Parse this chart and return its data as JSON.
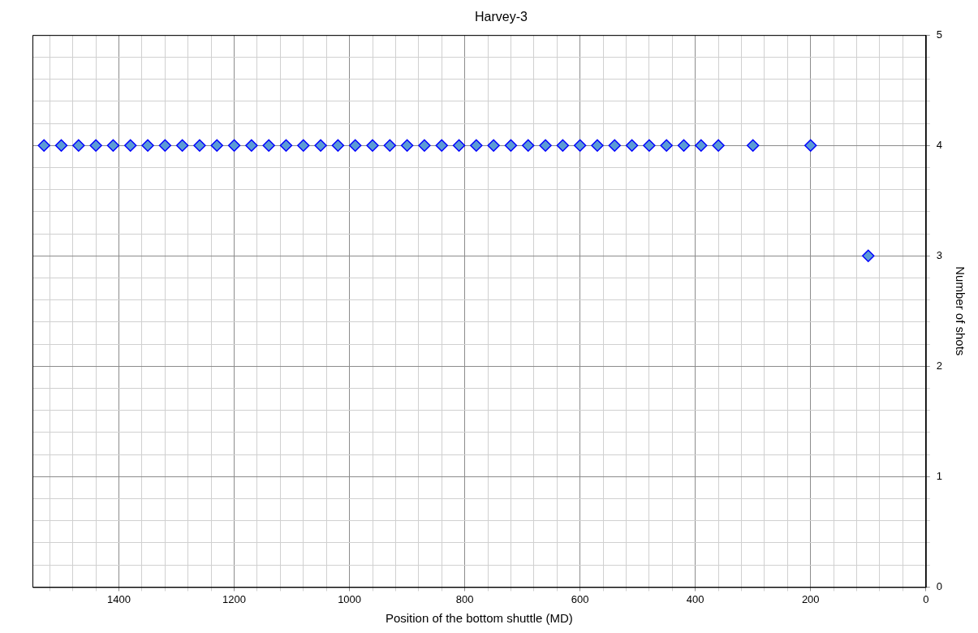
{
  "chart_data": {
    "type": "scatter",
    "title": "Harvey-3",
    "xlabel": "Position of the bottom shuttle (MD)",
    "ylabel": "Number of shots",
    "x": [
      1530,
      1500,
      1470,
      1440,
      1410,
      1380,
      1350,
      1320,
      1290,
      1260,
      1230,
      1200,
      1170,
      1140,
      1110,
      1080,
      1050,
      1020,
      990,
      960,
      930,
      900,
      870,
      840,
      810,
      780,
      750,
      720,
      690,
      660,
      630,
      600,
      570,
      540,
      510,
      480,
      450,
      420,
      390,
      360,
      300,
      200,
      100
    ],
    "values": [
      4,
      4,
      4,
      4,
      4,
      4,
      4,
      4,
      4,
      4,
      4,
      4,
      4,
      4,
      4,
      4,
      4,
      4,
      4,
      4,
      4,
      4,
      4,
      4,
      4,
      4,
      4,
      4,
      4,
      4,
      4,
      4,
      4,
      4,
      4,
      4,
      4,
      4,
      4,
      4,
      4,
      4,
      3
    ],
    "color": "#5b9bd5",
    "marker": "diamond",
    "grid": true,
    "legend": false,
    "xlim": [
      1550,
      0
    ],
    "xticks": [
      {
        "value": 1520,
        "label": null
      },
      {
        "value": 1480,
        "label": null
      },
      {
        "value": 1440,
        "label": null
      },
      1400,
      {
        "value": 1360,
        "label": null
      },
      {
        "value": 1320,
        "label": null
      },
      {
        "value": 1280,
        "label": null
      },
      {
        "value": 1240,
        "label": null
      },
      1200,
      {
        "value": 1160,
        "label": null
      },
      {
        "value": 1120,
        "label": null
      },
      {
        "value": 1080,
        "label": null
      },
      {
        "value": 1040,
        "label": null
      },
      1000,
      {
        "value": 960,
        "label": null
      },
      {
        "value": 920,
        "label": null
      },
      {
        "value": 880,
        "label": null
      },
      {
        "value": 840,
        "label": null
      },
      800,
      {
        "value": 760,
        "label": null
      },
      {
        "value": 720,
        "label": null
      },
      {
        "value": 680,
        "label": null
      },
      {
        "value": 640,
        "label": null
      },
      600,
      {
        "value": 560,
        "label": null
      },
      {
        "value": 520,
        "label": null
      },
      {
        "value": 480,
        "label": null
      },
      {
        "value": 440,
        "label": null
      },
      400,
      {
        "value": 360,
        "label": null
      },
      {
        "value": 320,
        "label": null
      },
      {
        "value": 280,
        "label": null
      },
      {
        "value": 240,
        "label": null
      },
      200,
      {
        "value": 160,
        "label": null
      },
      {
        "value": 120,
        "label": null
      },
      {
        "value": 80,
        "label": null
      },
      {
        "value": 40,
        "label": null
      },
      0
    ],
    "ylim": [
      0,
      5
    ],
    "yticks": [
      0,
      {
        "value": 0.2,
        "label": null
      },
      {
        "value": 0.4,
        "label": null
      },
      {
        "value": 0.6,
        "label": null
      },
      {
        "value": 0.8,
        "label": null
      },
      1,
      {
        "value": 1.2,
        "label": null
      },
      {
        "value": 1.4,
        "label": null
      },
      {
        "value": 1.6,
        "label": null
      },
      {
        "value": 1.8,
        "label": null
      },
      2,
      {
        "value": 2.2,
        "label": null
      },
      {
        "value": 2.4,
        "label": null
      },
      {
        "value": 2.6,
        "label": null
      },
      {
        "value": 2.8,
        "label": null
      },
      3,
      {
        "value": 3.2,
        "label": null
      },
      {
        "value": 3.4,
        "label": null
      },
      {
        "value": 3.6,
        "label": null
      },
      {
        "value": 3.8,
        "label": null
      },
      4,
      {
        "value": 4.2,
        "label": null
      },
      {
        "value": 4.4,
        "label": null
      },
      {
        "value": 4.6,
        "label": null
      },
      {
        "value": 4.8,
        "label": null
      },
      5
    ]
  }
}
